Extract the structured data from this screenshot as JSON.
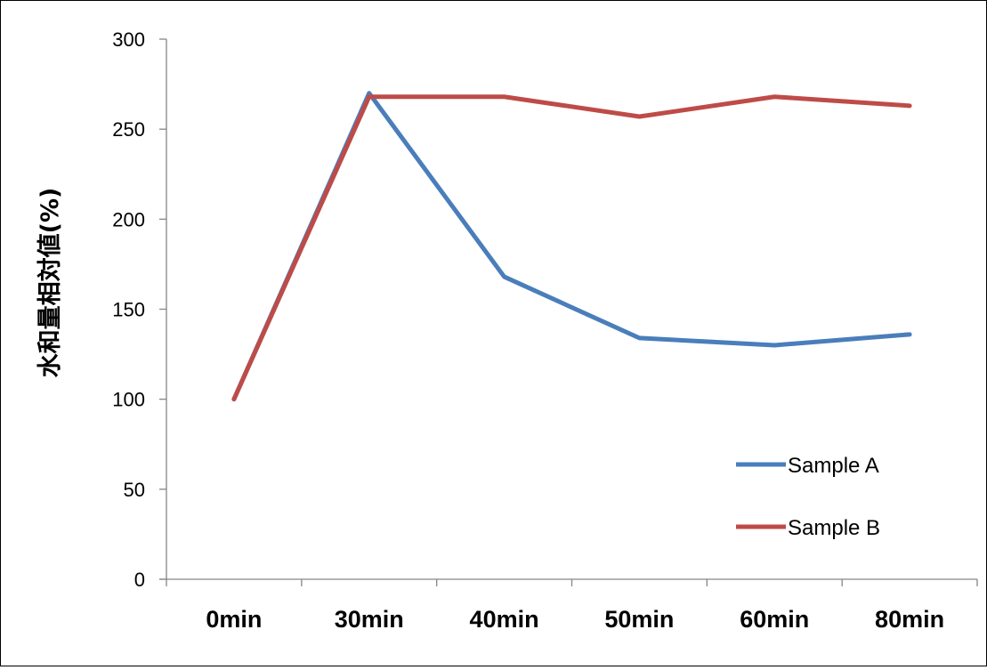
{
  "chart_data": {
    "type": "line",
    "title": "",
    "xlabel": "",
    "ylabel": "水和量相対値(%)",
    "categories": [
      "0min",
      "30min",
      "40min",
      "50min",
      "60min",
      "80min"
    ],
    "yticks": [
      "0",
      "50",
      "100",
      "150",
      "200",
      "250",
      "300"
    ],
    "ylim": [
      0,
      300
    ],
    "grid": false,
    "legend_position": "bottom-right",
    "series": [
      {
        "name": "Sample A",
        "color": "#4a7ebb",
        "values": [
          100,
          270,
          168,
          134,
          130,
          136
        ]
      },
      {
        "name": "Sample B",
        "color": "#be4b48",
        "values": [
          100,
          268,
          268,
          257,
          268,
          263
        ]
      }
    ]
  }
}
